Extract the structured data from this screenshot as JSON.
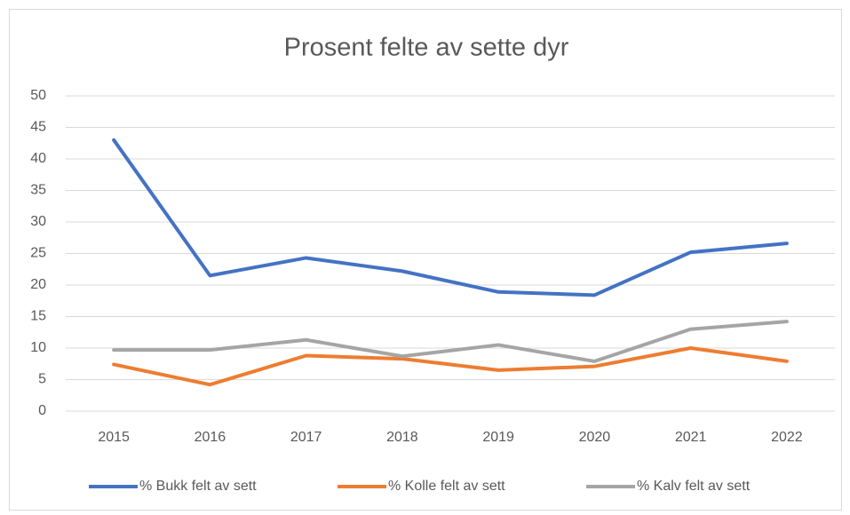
{
  "chart_data": {
    "type": "line",
    "title": "Prosent felte av sette dyr",
    "categories": [
      "2015",
      "2016",
      "2017",
      "2018",
      "2019",
      "2020",
      "2021",
      "2022"
    ],
    "series": [
      {
        "name": "% Bukk felt av sett",
        "color": "#4472c4",
        "values": [
          43,
          21.5,
          24.3,
          22.2,
          18.9,
          18.4,
          25.2,
          26.6
        ]
      },
      {
        "name": "% Kolle felt av sett",
        "color": "#ed7d31",
        "values": [
          7.4,
          4.2,
          8.8,
          8.3,
          6.5,
          7.1,
          10.0,
          7.9
        ]
      },
      {
        "name": "% Kalv felt av sett",
        "color": "#a5a5a5",
        "values": [
          9.7,
          9.7,
          11.3,
          8.7,
          10.5,
          7.9,
          13.0,
          14.2
        ]
      }
    ],
    "ylim": [
      0,
      50
    ],
    "yticks": [
      0,
      5,
      10,
      15,
      20,
      25,
      30,
      35,
      40,
      45,
      50
    ],
    "grid": true,
    "legend": "bottom"
  }
}
